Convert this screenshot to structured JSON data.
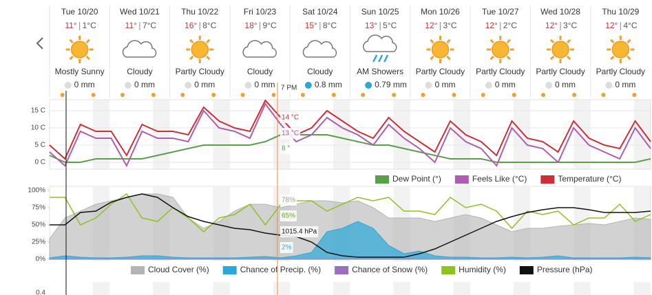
{
  "days": [
    {
      "date": "Tue 10/20",
      "hi": "11°",
      "lo": "1°C",
      "condition": "Mostly Sunny",
      "precip": "0 mm",
      "icon": "sun"
    },
    {
      "date": "Wed 10/21",
      "hi": "11°",
      "lo": "7°C",
      "condition": "Cloudy",
      "precip": "0 mm",
      "icon": "cloud"
    },
    {
      "date": "Thu 10/22",
      "hi": "16°",
      "lo": "8°C",
      "condition": "Partly Cloudy",
      "precip": "0 mm",
      "icon": "sun"
    },
    {
      "date": "Fri 10/23",
      "hi": "18°",
      "lo": "9°C",
      "condition": "Cloudy",
      "precip": "0 mm",
      "icon": "cloud"
    },
    {
      "date": "Sat 10/24",
      "hi": "15°",
      "lo": "8°C",
      "condition": "Cloudy",
      "precip": "0.8 mm",
      "icon": "cloud"
    },
    {
      "date": "Sun 10/25",
      "hi": "13°",
      "lo": "5°C",
      "condition": "AM Showers",
      "precip": "0.79 mm",
      "icon": "showers"
    },
    {
      "date": "Mon 10/26",
      "hi": "12°",
      "lo": "3°C",
      "condition": "Partly Cloudy",
      "precip": "0 mm",
      "icon": "sun"
    },
    {
      "date": "Tue 10/27",
      "hi": "12°",
      "lo": "2°C",
      "condition": "Partly Cloudy",
      "precip": "0 mm",
      "icon": "sun"
    },
    {
      "date": "Wed 10/28",
      "hi": "12°",
      "lo": "3°C",
      "condition": "Partly Cloudy",
      "precip": "0 mm",
      "icon": "sun"
    },
    {
      "date": "Thu 10/29",
      "hi": "12°",
      "lo": "4°C",
      "condition": "Partly Cloudy",
      "precip": "0 mm",
      "icon": "sun"
    }
  ],
  "cursor": {
    "time": "7 PM",
    "temperature": "14 °C",
    "feels_like": "13 °C",
    "dew_point": "8 °",
    "cloud_cover": "78%",
    "humidity": "65%",
    "pressure": "1015.4 hPa",
    "precip": "2%"
  },
  "chart_data": [
    {
      "type": "line",
      "ylim": [
        -2,
        17
      ],
      "yticks": [
        {
          "value": 15,
          "label": "15 C"
        },
        {
          "value": 10,
          "label": "10 C"
        },
        {
          "value": 5,
          "label": "5 C"
        },
        {
          "value": 0,
          "label": "0 C"
        }
      ],
      "grid": true,
      "series": [
        {
          "name": "Dew Point (°)",
          "color": "#5a9e4a",
          "values": [
            2,
            0,
            0,
            1,
            1,
            1,
            1,
            2,
            3,
            4,
            5,
            5,
            5,
            5,
            6,
            8,
            8,
            8,
            8,
            7,
            6,
            5,
            5,
            4,
            3,
            2,
            1,
            1,
            1,
            0,
            0,
            0,
            0,
            0,
            0,
            0,
            0,
            0,
            0,
            1
          ]
        },
        {
          "name": "Feels Like (°C)",
          "color": "#b05cb0",
          "values": [
            3,
            -1,
            9,
            7,
            7,
            -1,
            9,
            7,
            7,
            6,
            15,
            10,
            9,
            7,
            17,
            11,
            6,
            8,
            13,
            10,
            8,
            5,
            11,
            7,
            4,
            0,
            10,
            6,
            4,
            -1,
            10,
            5,
            4,
            0,
            10,
            5,
            3,
            1,
            10,
            4
          ]
        },
        {
          "name": "Temperature (°C)",
          "color": "#cc2f35",
          "values": [
            5,
            1,
            11,
            9,
            9,
            2,
            11,
            9,
            9,
            8,
            16,
            12,
            10,
            9,
            18,
            13,
            8,
            10,
            15,
            12,
            9,
            7,
            13,
            9,
            6,
            3,
            12,
            8,
            6,
            2,
            12,
            7,
            6,
            3,
            12,
            7,
            5,
            4,
            12,
            6
          ]
        }
      ]
    },
    {
      "type": "area",
      "ylim": [
        0,
        100
      ],
      "y2lim": [
        1014,
        1034
      ],
      "yticks": [
        {
          "value": 100,
          "label": "100%"
        },
        {
          "value": 75,
          "label": "75%"
        },
        {
          "value": 50,
          "label": "50%"
        },
        {
          "value": 25,
          "label": "25%"
        },
        {
          "value": 0,
          "label": "0%"
        }
      ],
      "series": [
        {
          "name": "Cloud Cover (%)",
          "color": "#b4b4b4",
          "values": [
            30,
            60,
            70,
            80,
            85,
            90,
            95,
            95,
            90,
            60,
            45,
            55,
            70,
            80,
            80,
            75,
            80,
            85,
            85,
            82,
            85,
            75,
            60,
            60,
            60,
            55,
            60,
            65,
            60,
            50,
            40,
            45,
            45,
            48,
            50,
            52,
            50,
            55,
            60,
            58
          ]
        },
        {
          "name": "Chance of Precip. (%)",
          "color": "#2aa8d8",
          "values": [
            2,
            5,
            3,
            2,
            2,
            3,
            5,
            5,
            3,
            2,
            2,
            2,
            2,
            3,
            4,
            2,
            5,
            10,
            40,
            45,
            55,
            45,
            20,
            8,
            12,
            5,
            3,
            3,
            2,
            2,
            3,
            2,
            3,
            5,
            2,
            2,
            2,
            2,
            3,
            2
          ]
        },
        {
          "name": "Chance of Snow (%)",
          "color": "#9b6fc0",
          "values": [
            0,
            0,
            0,
            0,
            0,
            0,
            0,
            0,
            0,
            0,
            0,
            0,
            0,
            0,
            0,
            0,
            0,
            0,
            0,
            0,
            0,
            0,
            0,
            0,
            0,
            0,
            0,
            0,
            0,
            0,
            0,
            0,
            0,
            0,
            0,
            0,
            0,
            0,
            0,
            0
          ]
        },
        {
          "name": "Humidity (%)",
          "color": "#8dc21f",
          "values": [
            90,
            90,
            50,
            60,
            80,
            95,
            60,
            55,
            75,
            60,
            40,
            60,
            65,
            80,
            50,
            80,
            85,
            85,
            70,
            80,
            90,
            85,
            90,
            70,
            70,
            65,
            90,
            75,
            80,
            70,
            45,
            70,
            65,
            70,
            50,
            60,
            60,
            80,
            55,
            65
          ]
        },
        {
          "name": "Pressure (hPa)",
          "color": "#111111",
          "axis": "y2",
          "values": [
            1024,
            1024,
            1027.6,
            1028,
            1030.6,
            1032,
            1033,
            1032,
            1029,
            1026.4,
            1025,
            1024,
            1023,
            1022.6,
            1021.6,
            1021,
            1020.6,
            1019,
            1016,
            1015,
            1014.6,
            1014.6,
            1014.6,
            1014.6,
            1015.6,
            1017,
            1019,
            1021,
            1023,
            1025,
            1026.4,
            1027.6,
            1028.4,
            1029,
            1029,
            1028.4,
            1027.6,
            1027.6,
            1027.6,
            1028
          ]
        }
      ]
    }
  ],
  "next_chart": {
    "ytick_label": "0.4"
  }
}
